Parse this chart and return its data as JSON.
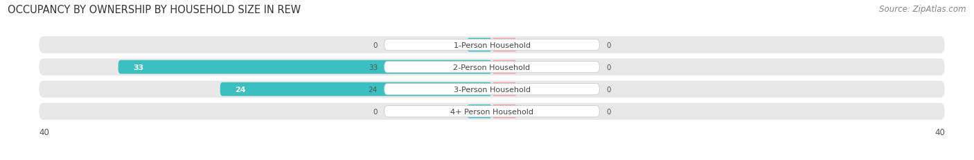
{
  "title": "OCCUPANCY BY OWNERSHIP BY HOUSEHOLD SIZE IN REW",
  "source": "Source: ZipAtlas.com",
  "categories": [
    "1-Person Household",
    "2-Person Household",
    "3-Person Household",
    "4+ Person Household"
  ],
  "owner_values": [
    0,
    33,
    24,
    0
  ],
  "renter_values": [
    0,
    0,
    0,
    0
  ],
  "owner_color": "#3bbfbf",
  "renter_color": "#f4a0b0",
  "bar_bg_color": "#e8e8e8",
  "xlim": [
    -40,
    40
  ],
  "axis_label_val": 40,
  "title_fontsize": 10.5,
  "source_fontsize": 8.5,
  "label_fontsize": 8,
  "value_fontsize": 7.5,
  "legend_fontsize": 8
}
